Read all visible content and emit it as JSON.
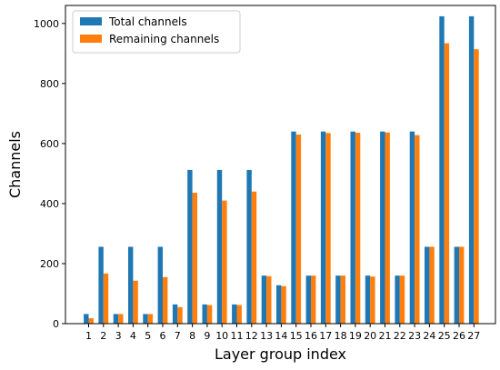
{
  "chart_data": {
    "type": "bar",
    "title": "",
    "xlabel": "Layer group index",
    "ylabel": "Channels",
    "categories": [
      "1",
      "2",
      "3",
      "4",
      "5",
      "6",
      "7",
      "8",
      "9",
      "10",
      "11",
      "12",
      "13",
      "14",
      "15",
      "16",
      "17",
      "18",
      "19",
      "20",
      "21",
      "22",
      "23",
      "24",
      "25",
      "26",
      "27"
    ],
    "ylim": [
      0,
      1060
    ],
    "yticks": [
      0,
      200,
      400,
      600,
      800,
      1000
    ],
    "grid": false,
    "legend": "top-left",
    "series": [
      {
        "name": "Total channels",
        "color": "#1f77b4",
        "values": [
          32,
          256,
          32,
          256,
          32,
          256,
          64,
          512,
          64,
          512,
          64,
          512,
          160,
          128,
          640,
          160,
          640,
          160,
          640,
          160,
          640,
          160,
          640,
          256,
          1024,
          256,
          1024
        ]
      },
      {
        "name": "Remaining channels",
        "color": "#ff7f0e",
        "values": [
          18,
          167,
          32,
          143,
          32,
          155,
          55,
          436,
          62,
          410,
          62,
          440,
          158,
          125,
          630,
          160,
          635,
          160,
          636,
          157,
          637,
          160,
          628,
          256,
          934,
          256,
          914
        ]
      }
    ]
  }
}
